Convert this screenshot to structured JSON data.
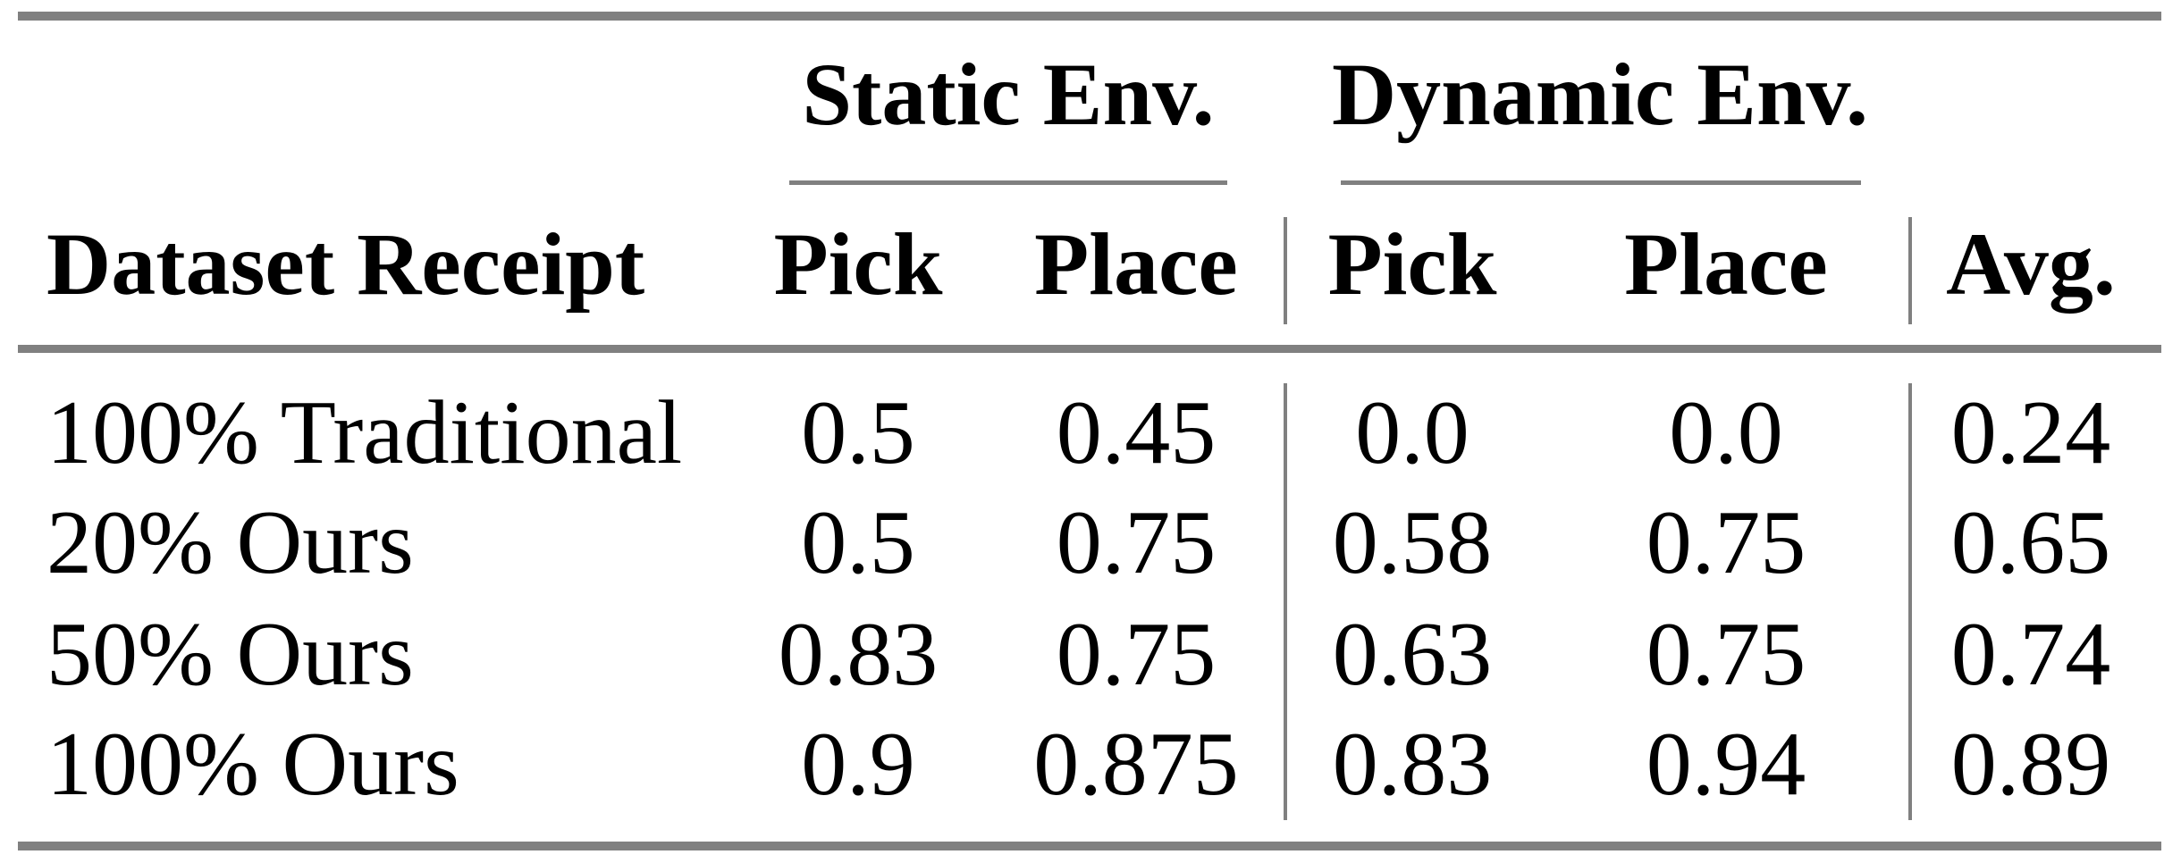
{
  "colors": {
    "background": "#ffffff",
    "rule_gray": "#808080",
    "text": "#000000"
  },
  "table": {
    "col1_header": "Dataset Receipt",
    "groups": [
      {
        "label": "Static Env.",
        "columns": [
          "Pick",
          "Place"
        ]
      },
      {
        "label": "Dynamic Env.",
        "columns": [
          "Pick",
          "Place"
        ]
      }
    ],
    "avg_header": "Avg.",
    "rows": [
      {
        "label": "100% Traditional",
        "values": [
          "0.5",
          "0.45",
          "0.0",
          "0.0",
          "0.24"
        ]
      },
      {
        "label": "20% Ours",
        "values": [
          "0.5",
          "0.75",
          "0.58",
          "0.75",
          "0.65"
        ]
      },
      {
        "label": "50% Ours",
        "values": [
          "0.83",
          "0.75",
          "0.63",
          "0.75",
          "0.74"
        ]
      },
      {
        "label": "100% Ours",
        "values": [
          "0.9",
          "0.875",
          "0.83",
          "0.94",
          "0.89"
        ]
      }
    ]
  },
  "chart_data": {
    "type": "table",
    "title": "",
    "columns": [
      "Dataset Receipt",
      "Static Env. Pick",
      "Static Env. Place",
      "Dynamic Env. Pick",
      "Dynamic Env. Place",
      "Avg."
    ],
    "rows": [
      [
        "100% Traditional",
        0.5,
        0.45,
        0.0,
        0.0,
        0.24
      ],
      [
        "20% Ours",
        0.5,
        0.75,
        0.58,
        0.75,
        0.65
      ],
      [
        "50% Ours",
        0.83,
        0.75,
        0.63,
        0.75,
        0.74
      ],
      [
        "100% Ours",
        0.9,
        0.875,
        0.83,
        0.94,
        0.89
      ]
    ]
  }
}
